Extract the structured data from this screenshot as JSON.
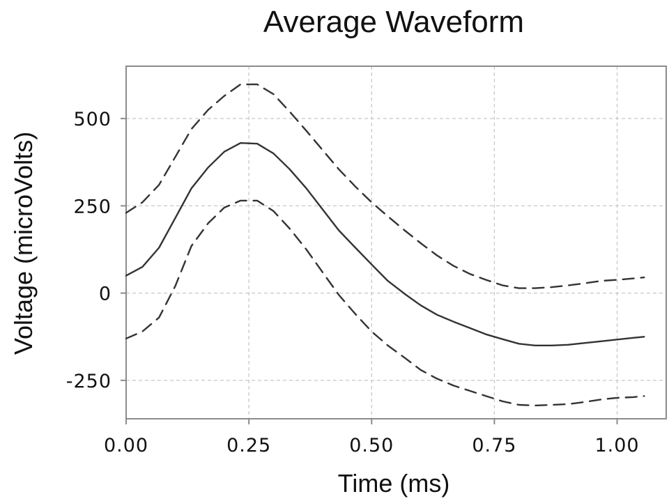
{
  "chart_data": {
    "type": "line",
    "title": "Average Waveform",
    "xlabel": "Time (ms)",
    "ylabel": "Voltage (microVolts)",
    "xlim": [
      0,
      1.1
    ],
    "ylim": [
      -360,
      650
    ],
    "xticks": [
      0.0,
      0.25,
      0.5,
      0.75,
      1.0
    ],
    "xtick_labels": [
      "0.00",
      "0.25",
      "0.50",
      "0.75",
      "1.00"
    ],
    "yticks": [
      -250,
      0,
      250,
      500
    ],
    "ytick_labels": [
      "-250",
      "0",
      "250",
      "500"
    ],
    "grid": true,
    "x": [
      0.0,
      0.033,
      0.067,
      0.1,
      0.133,
      0.167,
      0.2,
      0.233,
      0.267,
      0.3,
      0.333,
      0.367,
      0.4,
      0.433,
      0.467,
      0.5,
      0.533,
      0.567,
      0.6,
      0.633,
      0.667,
      0.7,
      0.733,
      0.767,
      0.8,
      0.833,
      0.867,
      0.9,
      0.933,
      0.967,
      1.0,
      1.033,
      1.055
    ],
    "series": [
      {
        "style": "solid",
        "values": [
          50,
          75,
          130,
          215,
          300,
          360,
          405,
          430,
          428,
          400,
          355,
          300,
          240,
          180,
          130,
          82,
          35,
          -2,
          -35,
          -62,
          -82,
          -100,
          -118,
          -132,
          -145,
          -150,
          -150,
          -148,
          -143,
          -138,
          -133,
          -128,
          -125
        ]
      },
      {
        "style": "dashed",
        "values": [
          230,
          260,
          310,
          390,
          470,
          525,
          565,
          598,
          598,
          570,
          520,
          465,
          410,
          355,
          305,
          260,
          220,
          180,
          143,
          108,
          78,
          55,
          38,
          22,
          14,
          14,
          17,
          22,
          28,
          35,
          38,
          42,
          45
        ]
      },
      {
        "style": "dashed",
        "values": [
          -130,
          -110,
          -70,
          20,
          135,
          200,
          245,
          265,
          265,
          235,
          185,
          125,
          60,
          -5,
          -60,
          -110,
          -150,
          -185,
          -220,
          -245,
          -265,
          -280,
          -295,
          -310,
          -320,
          -322,
          -320,
          -318,
          -312,
          -305,
          -300,
          -298,
          -295
        ]
      }
    ]
  }
}
